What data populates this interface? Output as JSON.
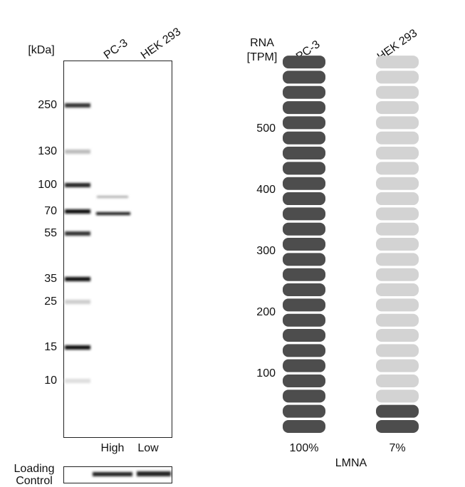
{
  "western_blot": {
    "unit_label": "[kDa]",
    "lanes": [
      "PC-3",
      "HEK 293"
    ],
    "markers": [
      "250",
      "130",
      "100",
      "70",
      "55",
      "35",
      "25",
      "15",
      "10"
    ],
    "levels": [
      "High",
      "Low"
    ],
    "loading_control": [
      "Loading",
      "Control"
    ]
  },
  "rna": {
    "axis_label": [
      "RNA",
      "[TPM]"
    ],
    "samples": [
      "PC-3",
      "HEK 293"
    ],
    "ticks": [
      "500",
      "400",
      "300",
      "200",
      "100"
    ],
    "percents": [
      "100%",
      "7%"
    ],
    "gene": "LMNA"
  }
}
